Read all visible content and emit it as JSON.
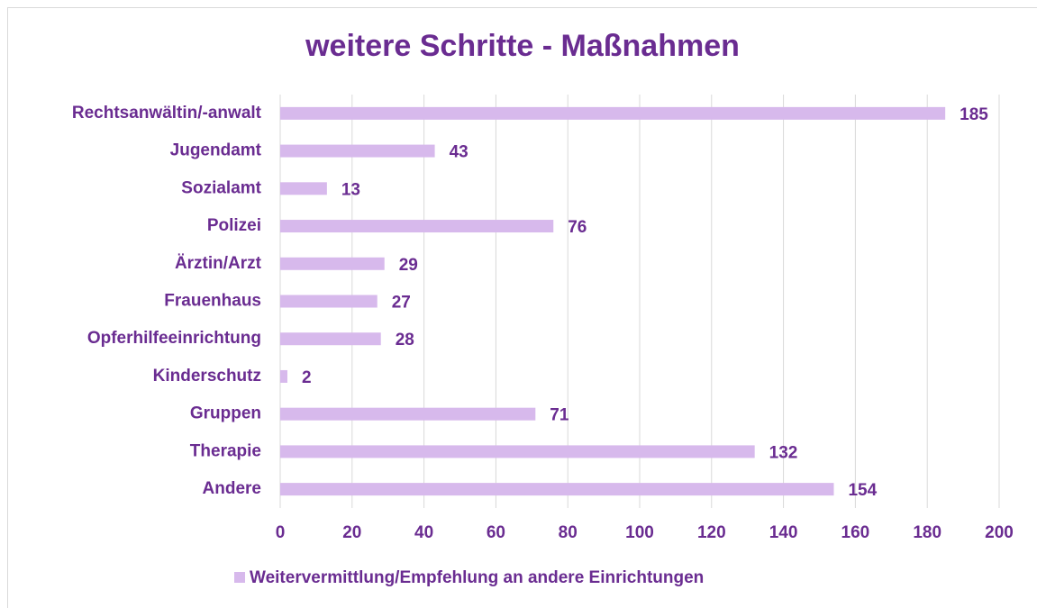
{
  "chart_data": {
    "type": "bar",
    "orientation": "horizontal",
    "title": "weitere Schritte - Maßnahmen",
    "categories": [
      "Rechtsanwältin/-anwalt",
      "Jugendamt",
      "Sozialamt",
      "Polizei",
      "Ärztin/Arzt",
      "Frauenhaus",
      "Opferhilfeeinrichtung",
      "Kinderschutz",
      "Gruppen",
      "Therapie",
      "Andere"
    ],
    "series": [
      {
        "name": "Weitervermittlung/Empfehlung an andere Einrichtungen",
        "color": "#d7b9ec",
        "values": [
          185,
          43,
          13,
          76,
          29,
          27,
          28,
          2,
          71,
          132,
          154
        ]
      }
    ],
    "xlim": [
      0,
      200
    ],
    "xticks": [
      0,
      20,
      40,
      60,
      80,
      100,
      120,
      140,
      160,
      180,
      200
    ],
    "grid": true,
    "legend": "bottom",
    "data_labels": true
  }
}
